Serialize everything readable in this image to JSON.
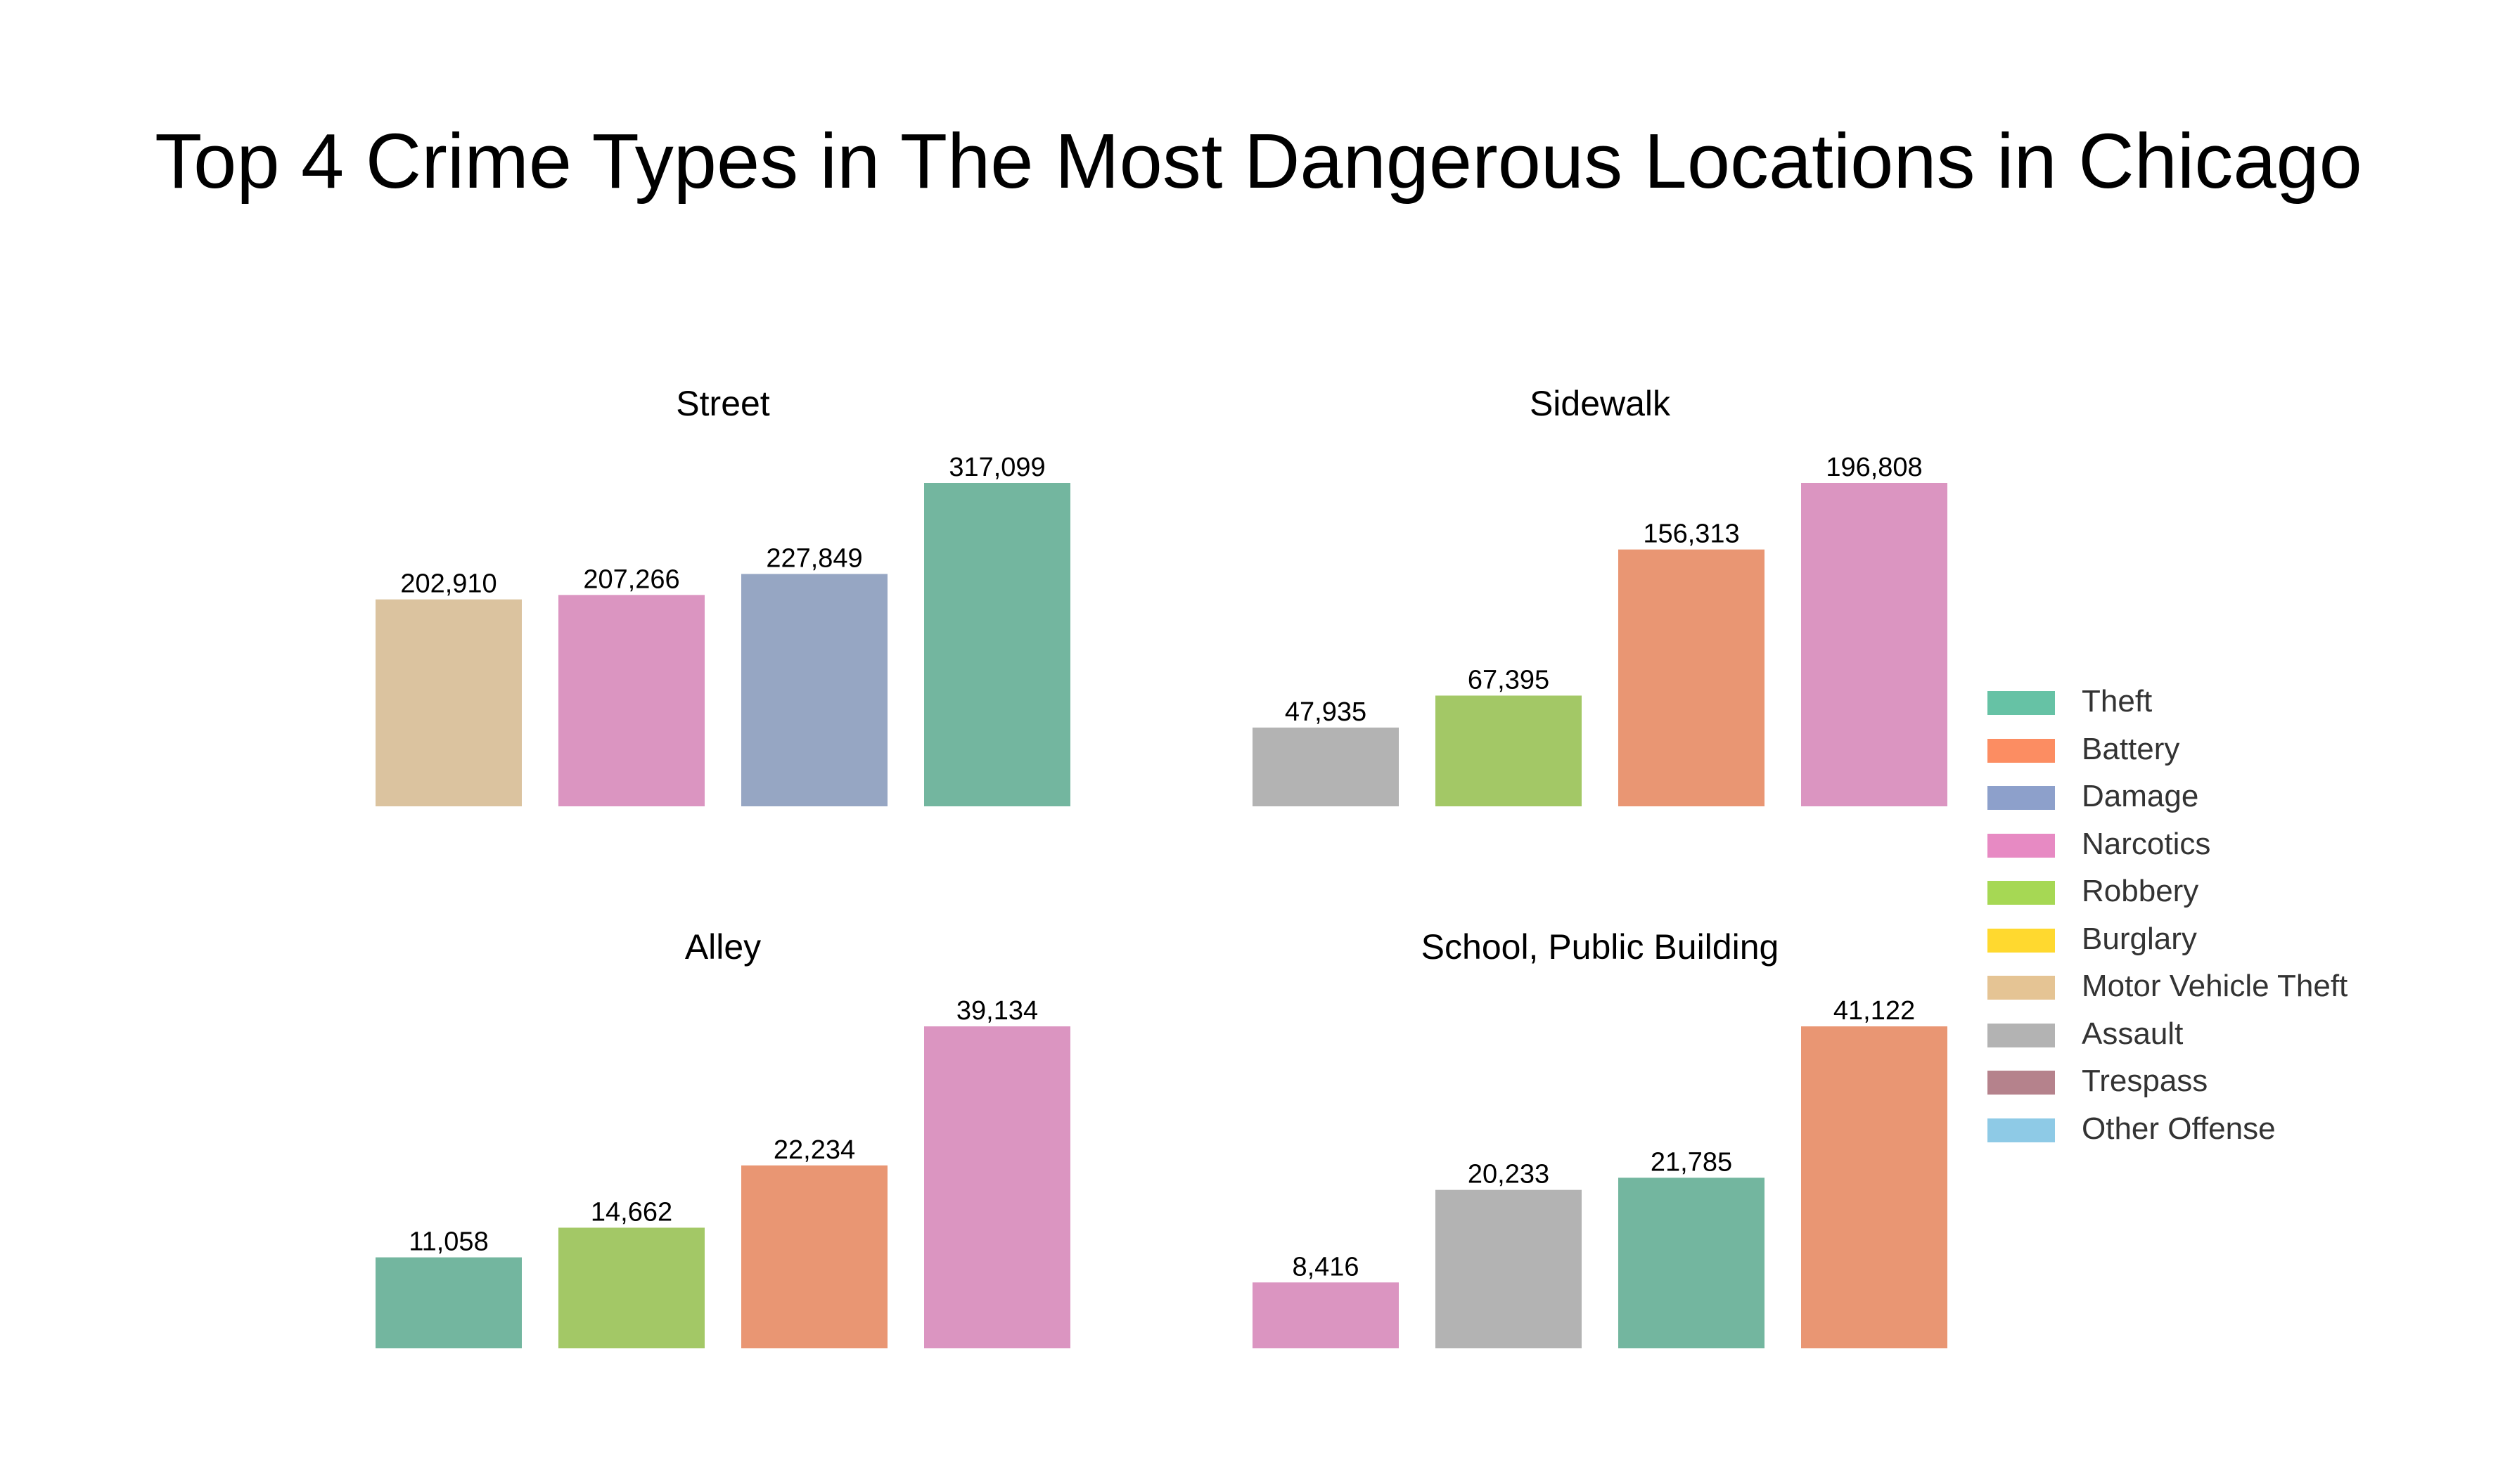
{
  "chart_data": {
    "type": "bar",
    "title": "Top 4 Crime Types in The Most Dangerous Locations in Chicago",
    "panels": [
      {
        "title": "Street",
        "categories": [
          "Motor Vehicle Theft",
          "Narcotics",
          "Damage",
          "Theft"
        ],
        "values": [
          202910,
          207266,
          227849,
          317099
        ],
        "labels": [
          "202,910",
          "207,266",
          "227,849",
          "317,099"
        ]
      },
      {
        "title": "Sidewalk",
        "categories": [
          "Assault",
          "Robbery",
          "Battery",
          "Narcotics"
        ],
        "values": [
          47935,
          67395,
          156313,
          196808
        ],
        "labels": [
          "47,935",
          "67,395",
          "156,313",
          "196,808"
        ]
      },
      {
        "title": "Alley",
        "categories": [
          "Theft",
          "Robbery",
          "Battery",
          "Narcotics"
        ],
        "values": [
          11058,
          14662,
          22234,
          39134
        ],
        "labels": [
          "11,058",
          "14,662",
          "22,234",
          "39,134"
        ]
      },
      {
        "title": "School, Public Building",
        "categories": [
          "Narcotics",
          "Assault",
          "Theft",
          "Battery"
        ],
        "values": [
          8416,
          20233,
          21785,
          41122
        ],
        "labels": [
          "8,416",
          "20,233",
          "21,785",
          "41,122"
        ]
      }
    ],
    "legend": {
      "placement": "right",
      "items": [
        {
          "name": "Theft",
          "color": "#66c2a5"
        },
        {
          "name": "Battery",
          "color": "#fc8d62"
        },
        {
          "name": "Damage",
          "color": "#8da0cb"
        },
        {
          "name": "Narcotics",
          "color": "#e78ac3"
        },
        {
          "name": "Robbery",
          "color": "#a6d854"
        },
        {
          "name": "Burglary",
          "color": "#ffd92f"
        },
        {
          "name": "Motor Vehicle Theft",
          "color": "#e5c494"
        },
        {
          "name": "Assault",
          "color": "#b3b3b3"
        },
        {
          "name": "Trespass",
          "color": "#b5828c"
        },
        {
          "name": "Other Offense",
          "color": "#8ecae6"
        }
      ]
    },
    "bar_colors": {
      "Theft": "#73b69f",
      "Battery": "#e99673",
      "Damage": "#96a6c3",
      "Narcotics": "#db95c1",
      "Robbery": "#a3c866",
      "Motor Vehicle Theft": "#dbc39f",
      "Assault": "#b3b3b3"
    },
    "axes_visible": false,
    "grid": false
  }
}
